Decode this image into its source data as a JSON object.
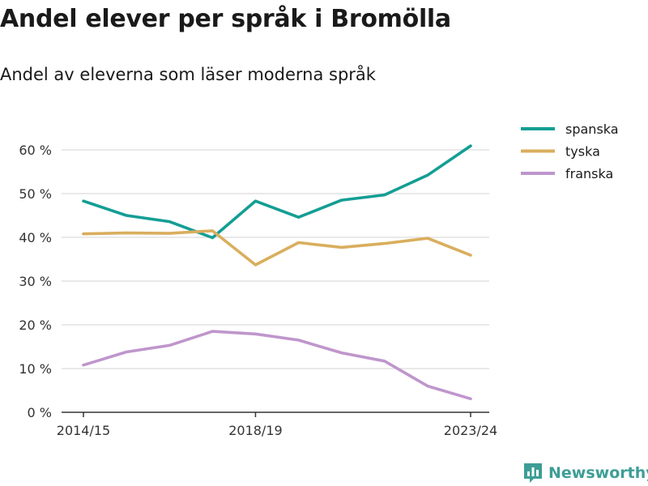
{
  "title": "Andel elever per språk i Bromölla",
  "subtitle": "Andel av eleverna som läser moderna språk",
  "brand": {
    "name": "Newsworthy"
  },
  "chart_data": {
    "type": "line",
    "x": [
      "2014/15",
      "2015/16",
      "2016/17",
      "2017/18",
      "2018/19",
      "2019/20",
      "2020/21",
      "2021/22",
      "2022/23",
      "2023/24"
    ],
    "x_tick_labels": [
      "2014/15",
      "2018/19",
      "2023/24"
    ],
    "y_ticks": [
      0,
      10,
      20,
      30,
      40,
      50,
      60
    ],
    "y_tick_labels": [
      "0 %",
      "10 %",
      "20 %",
      "30 %",
      "40 %",
      "50 %",
      "60 %"
    ],
    "ylim": [
      0,
      65
    ],
    "grid": true,
    "legend_position": "top-right",
    "series": [
      {
        "name": "spanska",
        "color": "#139e94",
        "values": [
          48.3,
          45.0,
          43.6,
          39.9,
          48.3,
          44.6,
          48.5,
          49.7,
          54.2,
          60.9
        ]
      },
      {
        "name": "tyska",
        "color": "#d9ae5e",
        "values": [
          40.8,
          41.0,
          40.9,
          41.5,
          33.7,
          38.8,
          37.7,
          38.6,
          39.8,
          35.9
        ]
      },
      {
        "name": "franska",
        "color": "#bf96cc",
        "values": [
          10.8,
          13.8,
          15.3,
          18.5,
          17.9,
          16.5,
          13.6,
          11.7,
          6.0,
          3.1
        ]
      }
    ]
  }
}
